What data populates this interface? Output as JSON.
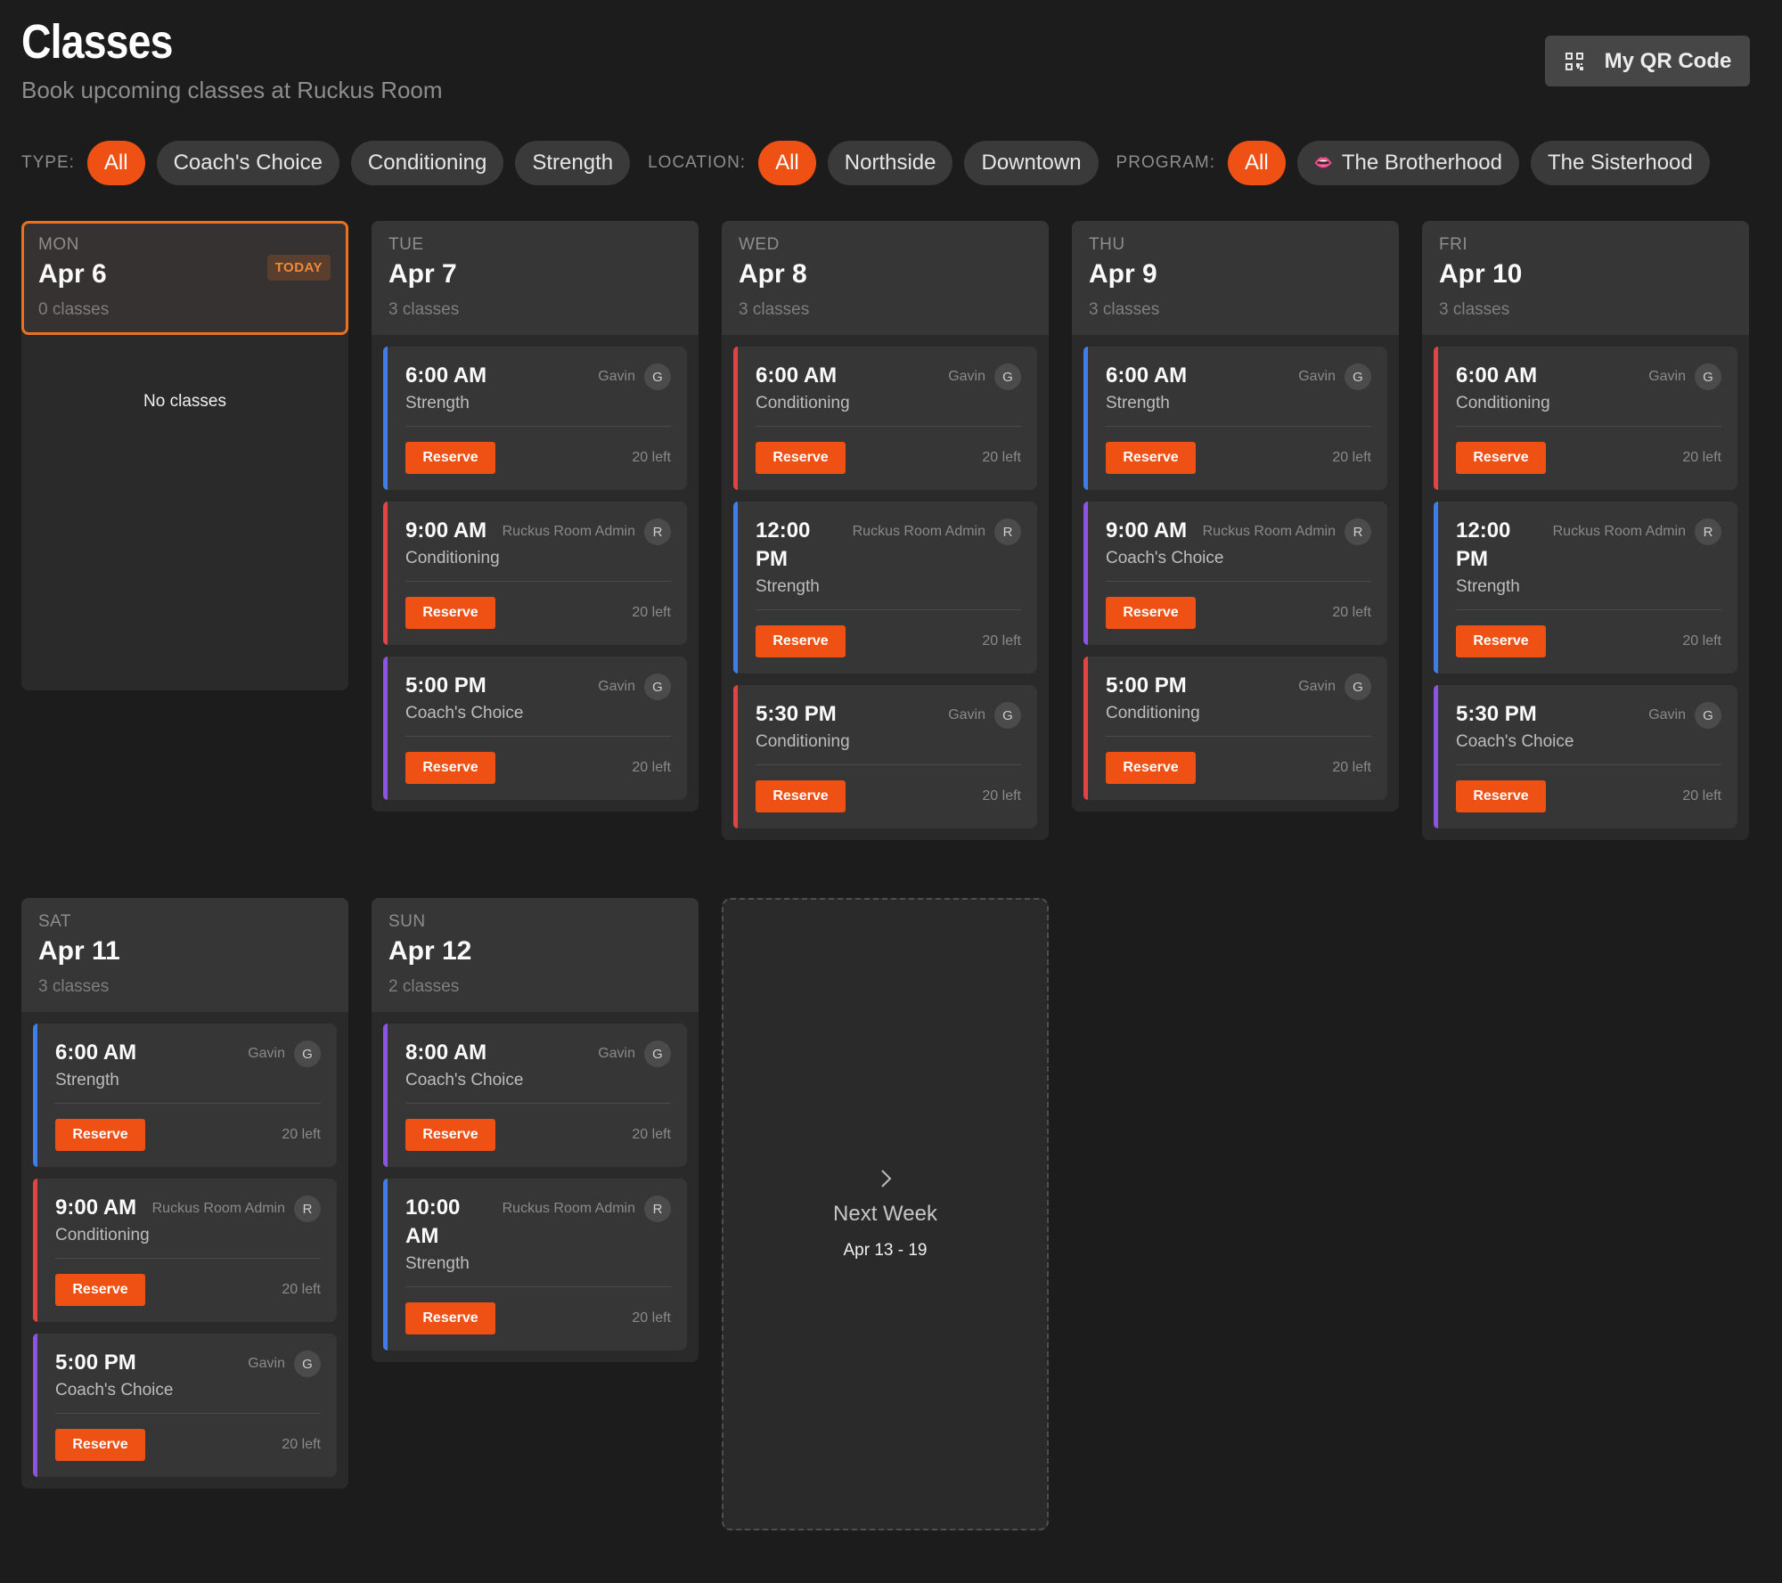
{
  "header": {
    "title": "Classes",
    "subtitle": "Book upcoming classes at Ruckus Room",
    "qr_button_label": "My QR Code",
    "qr_icon": "qr-code-icon"
  },
  "filters": {
    "type_label": "TYPE:",
    "type_options": [
      "All",
      "Coach's Choice",
      "Conditioning",
      "Strength"
    ],
    "location_label": "LOCATION:",
    "location_options": [
      "All",
      "Northside",
      "Downtown"
    ],
    "program_label": "PROGRAM:",
    "program_options": [
      "All",
      "The Brotherhood",
      "The Sisterhood"
    ],
    "program_brotherhood_emoji": "👄",
    "active_option": "All"
  },
  "colors": {
    "accent": "#ee5113",
    "today_border": "#e8721f",
    "strength": "#3f7de8",
    "conditioning": "#e04444",
    "coachs_choice": "#8a55e0"
  },
  "common": {
    "reserve_label": "Reserve",
    "no_classes": "No classes"
  },
  "days": [
    {
      "day": "MON",
      "date": "Apr 6",
      "count": "0 classes",
      "badge": "TODAY",
      "classes": []
    },
    {
      "day": "TUE",
      "date": "Apr 7",
      "count": "3 classes",
      "classes": [
        {
          "time": "6:00 AM",
          "type": "Strength",
          "instructor": "Gavin",
          "initial": "G",
          "spots": "20 left"
        },
        {
          "time": "9:00 AM",
          "type": "Conditioning",
          "instructor": "Ruckus Room Admin",
          "initial": "R",
          "spots": "20 left"
        },
        {
          "time": "5:00 PM",
          "type": "Coach's Choice",
          "instructor": "Gavin",
          "initial": "G",
          "spots": "20 left"
        }
      ]
    },
    {
      "day": "WED",
      "date": "Apr 8",
      "count": "3 classes",
      "classes": [
        {
          "time": "6:00 AM",
          "type": "Conditioning",
          "instructor": "Gavin",
          "initial": "G",
          "spots": "20 left"
        },
        {
          "time": "12:00 PM",
          "type": "Strength",
          "instructor": "Ruckus Room Admin",
          "initial": "R",
          "spots": "20 left"
        },
        {
          "time": "5:30 PM",
          "type": "Conditioning",
          "instructor": "Gavin",
          "initial": "G",
          "spots": "20 left"
        }
      ]
    },
    {
      "day": "THU",
      "date": "Apr 9",
      "count": "3 classes",
      "classes": [
        {
          "time": "6:00 AM",
          "type": "Strength",
          "instructor": "Gavin",
          "initial": "G",
          "spots": "20 left"
        },
        {
          "time": "9:00 AM",
          "type": "Coach's Choice",
          "instructor": "Ruckus Room Admin",
          "initial": "R",
          "spots": "20 left"
        },
        {
          "time": "5:00 PM",
          "type": "Conditioning",
          "instructor": "Gavin",
          "initial": "G",
          "spots": "20 left"
        }
      ]
    },
    {
      "day": "FRI",
      "date": "Apr 10",
      "count": "3 classes",
      "classes": [
        {
          "time": "6:00 AM",
          "type": "Conditioning",
          "instructor": "Gavin",
          "initial": "G",
          "spots": "20 left"
        },
        {
          "time": "12:00 PM",
          "type": "Strength",
          "instructor": "Ruckus Room Admin",
          "initial": "R",
          "spots": "20 left"
        },
        {
          "time": "5:30 PM",
          "type": "Coach's Choice",
          "instructor": "Gavin",
          "initial": "G",
          "spots": "20 left"
        }
      ]
    },
    {
      "day": "SAT",
      "date": "Apr 11",
      "count": "3 classes",
      "classes": [
        {
          "time": "6:00 AM",
          "type": "Strength",
          "instructor": "Gavin",
          "initial": "G",
          "spots": "20 left"
        },
        {
          "time": "9:00 AM",
          "type": "Conditioning",
          "instructor": "Ruckus Room Admin",
          "initial": "R",
          "spots": "20 left"
        },
        {
          "time": "5:00 PM",
          "type": "Coach's Choice",
          "instructor": "Gavin",
          "initial": "G",
          "spots": "20 left"
        }
      ]
    },
    {
      "day": "SUN",
      "date": "Apr 12",
      "count": "2 classes",
      "classes": [
        {
          "time": "8:00 AM",
          "type": "Coach's Choice",
          "instructor": "Gavin",
          "initial": "G",
          "spots": "20 left"
        },
        {
          "time": "10:00 AM",
          "type": "Strength",
          "instructor": "Ruckus Room Admin",
          "initial": "R",
          "spots": "20 left"
        }
      ]
    }
  ],
  "next_week": {
    "label": "Next Week",
    "range": "Apr 13 - 19",
    "icon": "chevron-right-icon"
  }
}
